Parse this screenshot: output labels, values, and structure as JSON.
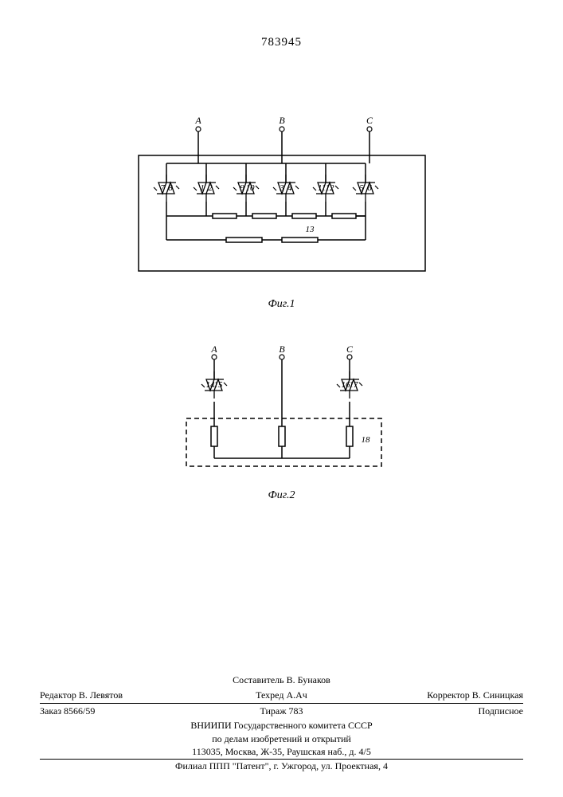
{
  "patent_number": "783945",
  "fig1": {
    "caption": "Фиг.1",
    "phase_labels": [
      "A",
      "B",
      "C"
    ],
    "thyristor_labels": [
      "7",
      "8",
      "1",
      "2",
      "9",
      "10",
      "3",
      "4",
      "11",
      "12",
      "5",
      "6"
    ],
    "ref_label": "13",
    "stroke": "#000000",
    "fill": "#ffffff",
    "font_size": 11
  },
  "fig2": {
    "caption": "Фиг.2",
    "phase_labels": [
      "A",
      "B",
      "C"
    ],
    "thyristor_labels_left": [
      "14",
      "15"
    ],
    "thyristor_labels_right": [
      "16",
      "17"
    ],
    "ref_label": "18",
    "stroke": "#000000",
    "fill": "#ffffff",
    "font_size": 11
  },
  "footer": {
    "line1": {
      "editor": "Редактор В. Левятов",
      "compiler": "Составитель В. Бунаков",
      "corrector": "Корректор В. Синицкая"
    },
    "line1b": {
      "blank": "",
      "tech": "Техред А.Ач",
      "blank2": ""
    },
    "line2": {
      "order": "Заказ 8566/59",
      "tiraz": "Тираж 783",
      "sub": "Подписное"
    },
    "line3": "ВНИИПИ Государственного комитета СССР",
    "line4": "по делам изобретений и открытий",
    "line5": "113035, Москва, Ж-35, Раушская наб., д. 4/5",
    "line6": "Филиал ППП \"Патент\", г. Ужгород, ул. Проектная, 4"
  }
}
